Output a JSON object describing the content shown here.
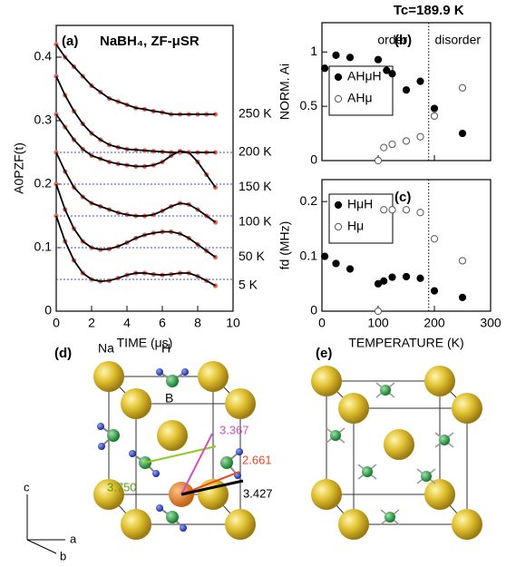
{
  "chart_data": [
    {
      "type": "line",
      "panel_label": "(a)",
      "title": "NaBH₄, ZF-μSR",
      "x_label": "TIME (μs)",
      "y_label": "A0PZF(t)",
      "xlim": [
        0,
        10
      ],
      "xticks": [
        0,
        2,
        4,
        6,
        8,
        10
      ],
      "ylim": [
        0,
        0.45
      ],
      "yticks": [
        0,
        0.1,
        0.2,
        0.3,
        0.4
      ],
      "reference_lines": [
        0.25,
        0.2,
        0.15,
        0.1,
        0.05
      ],
      "reference_color": "#3a4fd0",
      "x": [
        0,
        0.5,
        1,
        1.5,
        2,
        2.5,
        3,
        3.5,
        4,
        4.5,
        5,
        5.5,
        6,
        6.5,
        7,
        7.5,
        8,
        8.5,
        9
      ],
      "fit_color": "#000000",
      "series": [
        {
          "name": "250 K",
          "color": "#e8685c",
          "values": [
            0.42,
            0.4,
            0.385,
            0.37,
            0.355,
            0.345,
            0.335,
            0.33,
            0.325,
            0.32,
            0.318,
            0.315,
            0.313,
            0.31,
            0.31,
            0.31,
            0.31,
            0.31,
            0.31
          ]
        },
        {
          "name": "200 K",
          "color": "#e8685c",
          "values": [
            0.37,
            0.34,
            0.315,
            0.295,
            0.28,
            0.27,
            0.262,
            0.258,
            0.255,
            0.254,
            0.253,
            0.252,
            0.251,
            0.25,
            0.25,
            0.25,
            0.25,
            0.25,
            0.25
          ]
        },
        {
          "name": "150 K",
          "color": "#e8685c",
          "values": [
            0.31,
            0.29,
            0.27,
            0.255,
            0.245,
            0.24,
            0.235,
            0.232,
            0.23,
            0.228,
            0.228,
            0.23,
            0.235,
            0.245,
            0.252,
            0.25,
            0.235,
            0.215,
            0.195
          ]
        },
        {
          "name": "100 K",
          "color": "#e8685c",
          "values": [
            0.25,
            0.22,
            0.195,
            0.18,
            0.17,
            0.165,
            0.16,
            0.155,
            0.152,
            0.15,
            0.15,
            0.152,
            0.158,
            0.165,
            0.17,
            0.168,
            0.16,
            0.15,
            0.14
          ]
        },
        {
          "name": "50 K",
          "color": "#e8685c",
          "values": [
            0.2,
            0.16,
            0.13,
            0.11,
            0.1,
            0.097,
            0.098,
            0.102,
            0.108,
            0.115,
            0.12,
            0.123,
            0.125,
            0.125,
            0.122,
            0.115,
            0.105,
            0.095,
            0.085
          ]
        },
        {
          "name": "5 K",
          "color": "#e8685c",
          "values": [
            0.15,
            0.11,
            0.08,
            0.06,
            0.05,
            0.047,
            0.048,
            0.052,
            0.057,
            0.06,
            0.06,
            0.058,
            0.057,
            0.058,
            0.06,
            0.06,
            0.055,
            0.048,
            0.04
          ]
        }
      ]
    },
    {
      "type": "scatter",
      "panel_label": "(b)",
      "title": "Tc=189.9 K",
      "y_label": "NORM. Ai",
      "annotations": [
        "order",
        "disorder"
      ],
      "vline": 189.9,
      "xlim": [
        0,
        300
      ],
      "xticks": [
        0,
        100,
        200,
        300
      ],
      "ylim": [
        0,
        1.27
      ],
      "yticks": [
        0,
        0.5,
        1
      ],
      "series": [
        {
          "name": "AHμH",
          "color": "#000000",
          "filled": true,
          "x": [
            5,
            25,
            50,
            100,
            115,
            125,
            150,
            175,
            200,
            250
          ],
          "values": [
            0.85,
            0.97,
            0.95,
            0.93,
            0.83,
            0.8,
            0.65,
            0.73,
            0.48,
            0.25
          ]
        },
        {
          "name": "AHμ",
          "color": "#555555",
          "filled": false,
          "x": [
            100,
            110,
            125,
            150,
            175,
            200,
            250
          ],
          "values": [
            0.0,
            0.12,
            0.15,
            0.18,
            0.22,
            0.41,
            0.67
          ]
        }
      ]
    },
    {
      "type": "scatter",
      "panel_label": "(c)",
      "x_label": "TEMPERATURE (K)",
      "y_label": "fd (MHz)",
      "vline": 189.9,
      "xlim": [
        0,
        300
      ],
      "xticks": [
        0,
        100,
        200,
        300
      ],
      "ylim": [
        0,
        0.24
      ],
      "yticks": [
        0,
        0.1,
        0.2
      ],
      "series": [
        {
          "name": "HμH",
          "color": "#000000",
          "filled": true,
          "x": [
            5,
            25,
            50,
            100,
            110,
            125,
            150,
            175,
            200,
            250
          ],
          "values": [
            0.1,
            0.087,
            0.077,
            0.05,
            0.055,
            0.062,
            0.063,
            0.06,
            0.037,
            0.025
          ]
        },
        {
          "name": "Hμ",
          "color": "#555555",
          "filled": false,
          "x": [
            100,
            110,
            125,
            150,
            175,
            200,
            250
          ],
          "values": [
            0.0,
            0.185,
            0.185,
            0.185,
            0.18,
            0.132,
            0.092
          ]
        }
      ]
    }
  ],
  "structure_d": {
    "panel_label": "(d)",
    "atoms": [
      "Na",
      "H",
      "B"
    ],
    "distances": [
      "3.367",
      "2.661",
      "3.750",
      "3.427"
    ],
    "axes": [
      "c",
      "a",
      "b"
    ]
  },
  "structure_e": {
    "panel_label": "(e)"
  }
}
